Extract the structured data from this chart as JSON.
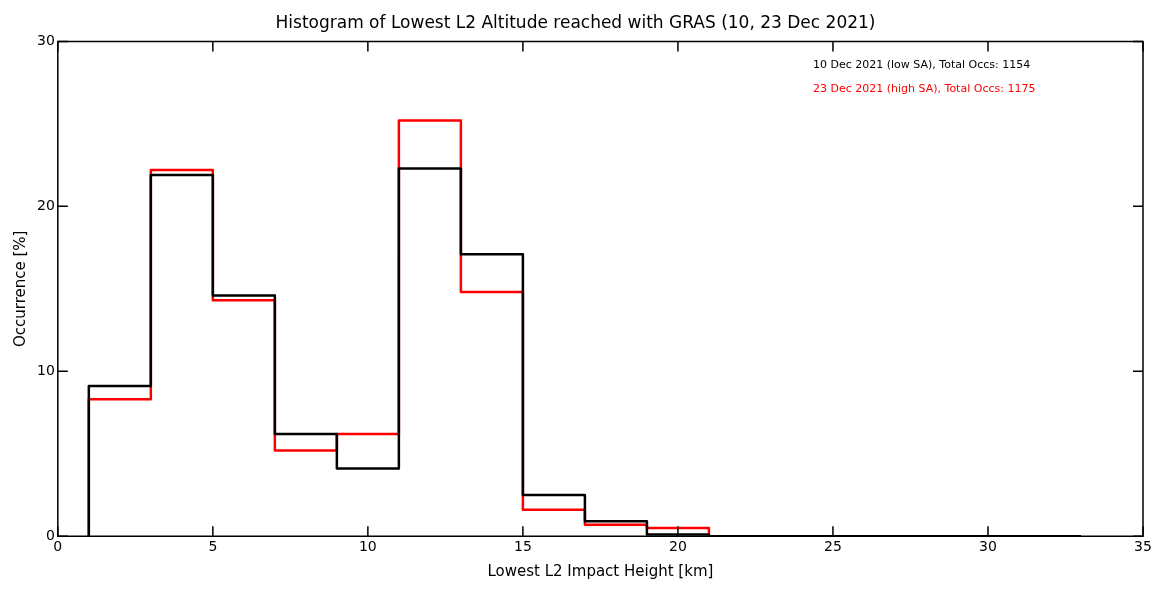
{
  "chart_data": {
    "type": "histogram",
    "title": "Histogram of Lowest L2 Altitude reached with GRAS (10, 23 Dec 2021)",
    "xlabel": "Lowest L2 Impact Height [km]",
    "ylabel": "Occurrence [%]",
    "bins": [
      1,
      3,
      5,
      7,
      9,
      11,
      13,
      15,
      17,
      19,
      21,
      23,
      25,
      27,
      29,
      31,
      33
    ],
    "series": [
      {
        "name": "10 Dec 2021 (low SA), Total Occs: 1154",
        "color": "#000000",
        "values": [
          9.1,
          21.9,
          14.6,
          6.2,
          4.1,
          22.3,
          17.1,
          2.5,
          0.9,
          0.1,
          0,
          0,
          0,
          0,
          0,
          0
        ]
      },
      {
        "name": "23 Dec 2021 (high SA), Total Occs: 1175",
        "color": "#ff0000",
        "values": [
          8.3,
          22.2,
          14.3,
          5.2,
          6.2,
          25.2,
          14.8,
          1.6,
          0.7,
          0.5,
          0,
          0,
          0,
          0,
          0,
          0
        ]
      }
    ],
    "xlim": [
      0,
      35
    ],
    "xticks": [
      0,
      5,
      10,
      15,
      20,
      25,
      30,
      35
    ],
    "ylim": [
      0,
      30
    ],
    "yticks": [
      0,
      10,
      20,
      30
    ],
    "grid": false,
    "legend": "top right"
  }
}
